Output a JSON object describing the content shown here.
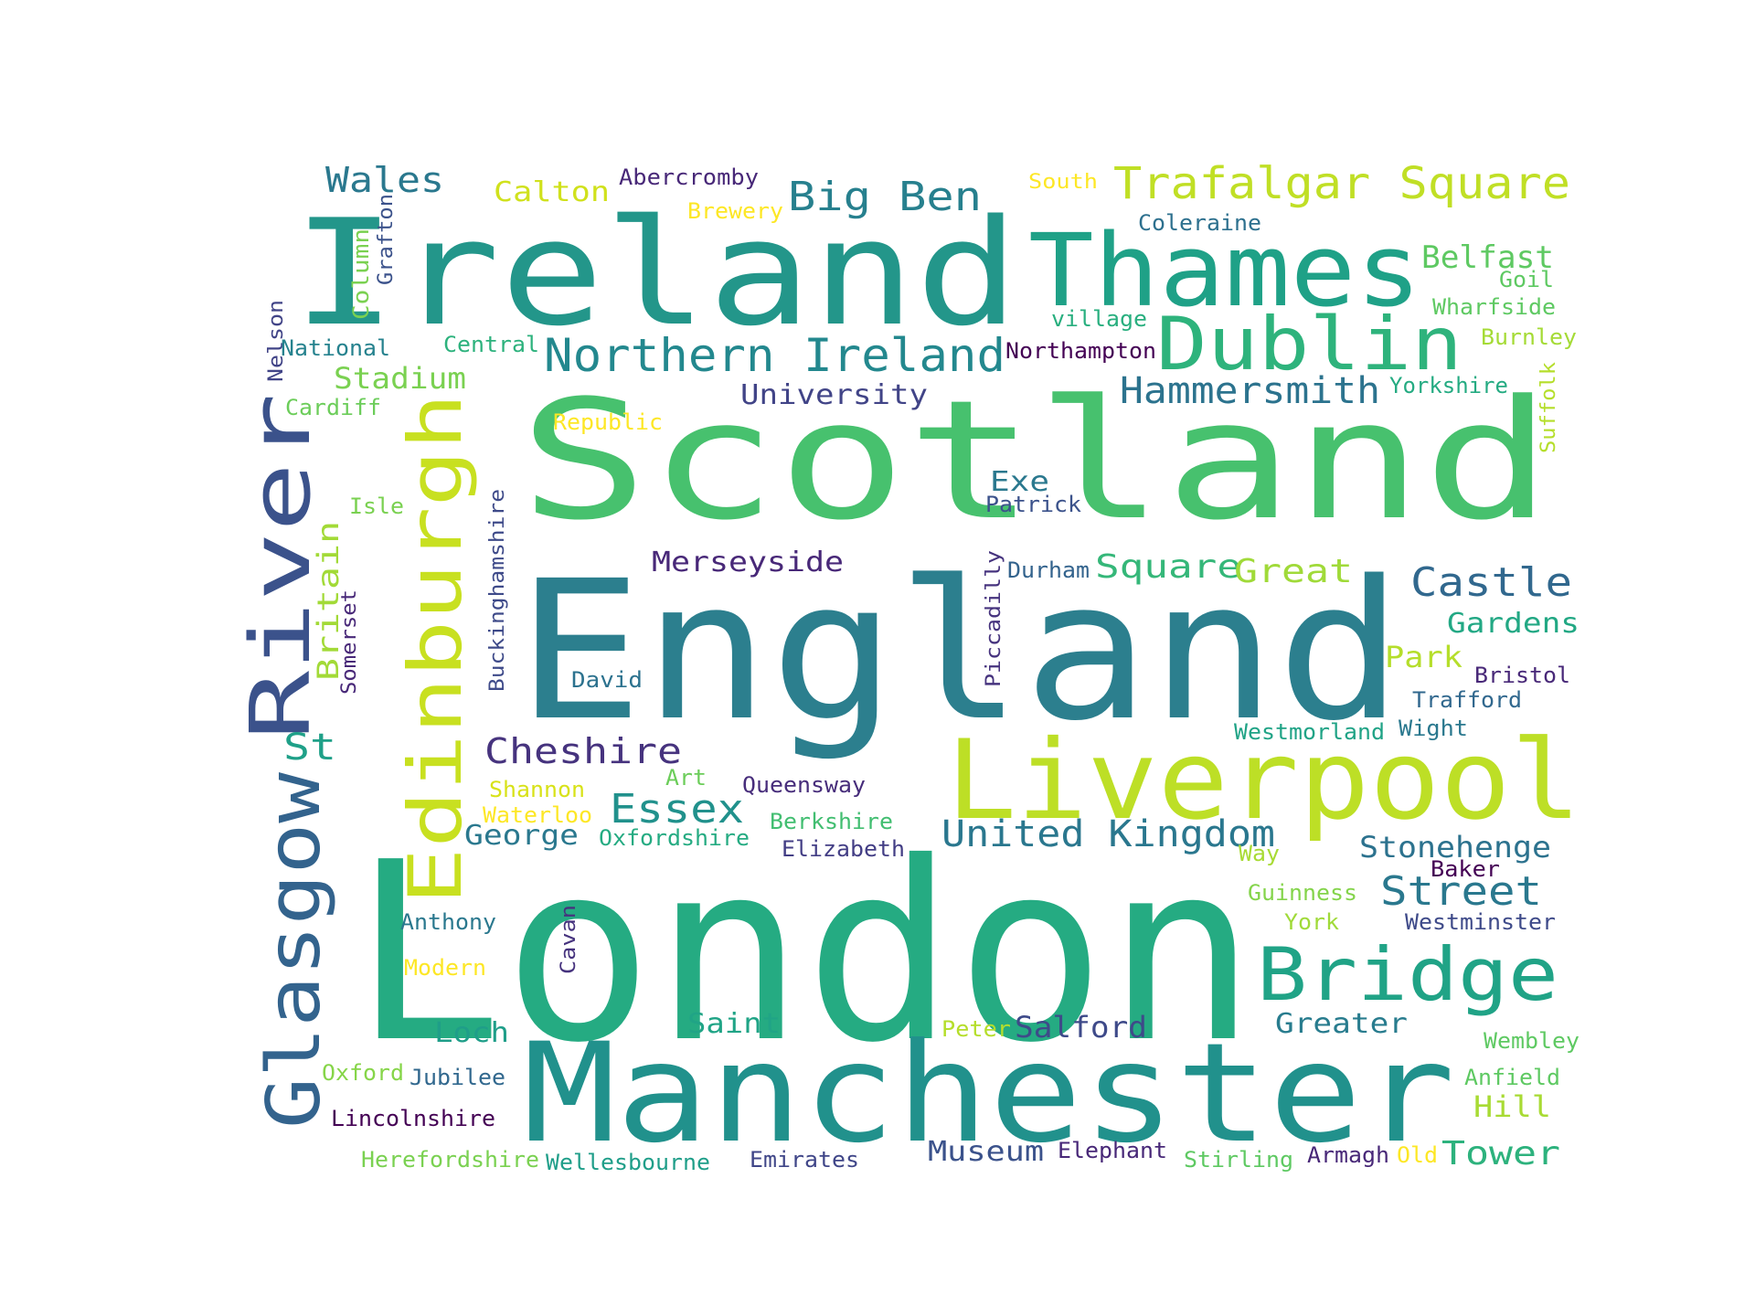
{
  "words": [
    {
      "text": "London",
      "color": "#25ab82"
    },
    {
      "text": "England",
      "color": "#2c7f8e"
    },
    {
      "text": "Scotland",
      "color": "#47c16e"
    },
    {
      "text": "Ireland",
      "color": "#23968a"
    },
    {
      "text": "Manchester",
      "color": "#21918c"
    },
    {
      "text": "Liverpool",
      "color": "#bddf26"
    },
    {
      "text": "Thames",
      "color": "#1fa187"
    },
    {
      "text": "Dublin",
      "color": "#2eb37c"
    },
    {
      "text": "River",
      "color": "#3b528b"
    },
    {
      "text": "Edinburgh",
      "color": "#c8e020"
    },
    {
      "text": "Glasgow",
      "color": "#33638d"
    },
    {
      "text": "Bridge",
      "color": "#20a386"
    },
    {
      "text": "Trafalgar Square",
      "color": "#c0df25"
    },
    {
      "text": "Northern Ireland",
      "color": "#23888e"
    },
    {
      "text": "Big Ben",
      "color": "#27808e"
    },
    {
      "text": "United Kingdom",
      "color": "#2a778e"
    },
    {
      "text": "Hammersmith",
      "color": "#2c738e"
    },
    {
      "text": "Castle",
      "color": "#31688e"
    },
    {
      "text": "Street",
      "color": "#2a788e"
    },
    {
      "text": "Cheshire",
      "color": "#46337e"
    },
    {
      "text": "Essex",
      "color": "#21918c"
    },
    {
      "text": "Belfast",
      "color": "#5ec962"
    },
    {
      "text": "Wales",
      "color": "#2a788e"
    },
    {
      "text": "Stonehenge",
      "color": "#2c728e"
    },
    {
      "text": "Square",
      "color": "#35b779"
    },
    {
      "text": "Great",
      "color": "#a0da39"
    },
    {
      "text": "Gardens",
      "color": "#22a884"
    },
    {
      "text": "Museum",
      "color": "#3b528b"
    },
    {
      "text": "Tower",
      "color": "#2db27d"
    },
    {
      "text": "Calton",
      "color": "#d0e11c"
    },
    {
      "text": "Merseyside",
      "color": "#482878"
    },
    {
      "text": "University",
      "color": "#414487"
    },
    {
      "text": "Stadium",
      "color": "#7ad151"
    },
    {
      "text": "Salford",
      "color": "#3e4a89"
    },
    {
      "text": "Greater",
      "color": "#287c8e"
    },
    {
      "text": "Saint",
      "color": "#20a486"
    },
    {
      "text": "Loch",
      "color": "#1f9e89"
    },
    {
      "text": "George",
      "color": "#2a788e"
    },
    {
      "text": "Britain",
      "color": "#a2da37"
    },
    {
      "text": "St",
      "color": "#1fa088"
    },
    {
      "text": "Park",
      "color": "#b5de2b"
    },
    {
      "text": "Hill",
      "color": "#a8db34"
    },
    {
      "text": "Exe",
      "color": "#2a788e"
    },
    {
      "text": "Abercromby",
      "color": "#482878"
    },
    {
      "text": "South",
      "color": "#fde725"
    },
    {
      "text": "Coleraine",
      "color": "#2d708e"
    },
    {
      "text": "Brewery",
      "color": "#fde725"
    },
    {
      "text": "Column",
      "color": "#7ad151"
    },
    {
      "text": "Grafton",
      "color": "#3b528b"
    },
    {
      "text": "Goil",
      "color": "#5ec962"
    },
    {
      "text": "Wharfside",
      "color": "#5ec962"
    },
    {
      "text": "Burnley",
      "color": "#a5db36"
    },
    {
      "text": "village",
      "color": "#29af7f"
    },
    {
      "text": "Nelson",
      "color": "#414487"
    },
    {
      "text": "National",
      "color": "#26828e"
    },
    {
      "text": "Central",
      "color": "#2db27d"
    },
    {
      "text": "Northampton",
      "color": "#440154"
    },
    {
      "text": "Yorkshire",
      "color": "#25ab82"
    },
    {
      "text": "Cardiff",
      "color": "#6ccd5a"
    },
    {
      "text": "Suffolk",
      "color": "#b5de2b"
    },
    {
      "text": "Republic",
      "color": "#fde725"
    },
    {
      "text": "Patrick",
      "color": "#3b528b"
    },
    {
      "text": "Isle",
      "color": "#7ad151"
    },
    {
      "text": "Buckinghamshire",
      "color": "#3e4a89"
    },
    {
      "text": "Durham",
      "color": "#33638d"
    },
    {
      "text": "Piccadilly",
      "color": "#46337e"
    },
    {
      "text": "Somerset",
      "color": "#482878"
    },
    {
      "text": "David",
      "color": "#2c728e"
    },
    {
      "text": "Bristol",
      "color": "#482878"
    },
    {
      "text": "Trafford",
      "color": "#31688e"
    },
    {
      "text": "Wight",
      "color": "#2a788e"
    },
    {
      "text": "Westmorland",
      "color": "#20a386"
    },
    {
      "text": "Art",
      "color": "#6ccd5a"
    },
    {
      "text": "Queensway",
      "color": "#472d7b"
    },
    {
      "text": "Shannon",
      "color": "#d8e219"
    },
    {
      "text": "Waterloo",
      "color": "#fde725"
    },
    {
      "text": "Oxfordshire",
      "color": "#25ab82"
    },
    {
      "text": "Berkshire",
      "color": "#42be71"
    },
    {
      "text": "Elizabeth",
      "color": "#433e85"
    },
    {
      "text": "Way",
      "color": "#a8db34"
    },
    {
      "text": "Baker",
      "color": "#440154"
    },
    {
      "text": "Guinness",
      "color": "#84d44b"
    },
    {
      "text": "York",
      "color": "#a0da39"
    },
    {
      "text": "Westminster",
      "color": "#3e4a89"
    },
    {
      "text": "Anthony",
      "color": "#2a788e"
    },
    {
      "text": "Cavan",
      "color": "#46337e"
    },
    {
      "text": "Modern",
      "color": "#fde725"
    },
    {
      "text": "Peter",
      "color": "#b5de2b"
    },
    {
      "text": "Wembley",
      "color": "#5ec962"
    },
    {
      "text": "Oxford",
      "color": "#86d549"
    },
    {
      "text": "Jubilee",
      "color": "#31688e"
    },
    {
      "text": "Anfield",
      "color": "#5ec962"
    },
    {
      "text": "Lincolnshire",
      "color": "#440154"
    },
    {
      "text": "Herefordshire",
      "color": "#7ad151"
    },
    {
      "text": "Wellesbourne",
      "color": "#1f9e89"
    },
    {
      "text": "Emirates",
      "color": "#404688"
    },
    {
      "text": "Elephant",
      "color": "#482878"
    },
    {
      "text": "Stirling",
      "color": "#5ec962"
    },
    {
      "text": "Armagh",
      "color": "#482878"
    },
    {
      "text": "Old",
      "color": "#fde725"
    }
  ]
}
